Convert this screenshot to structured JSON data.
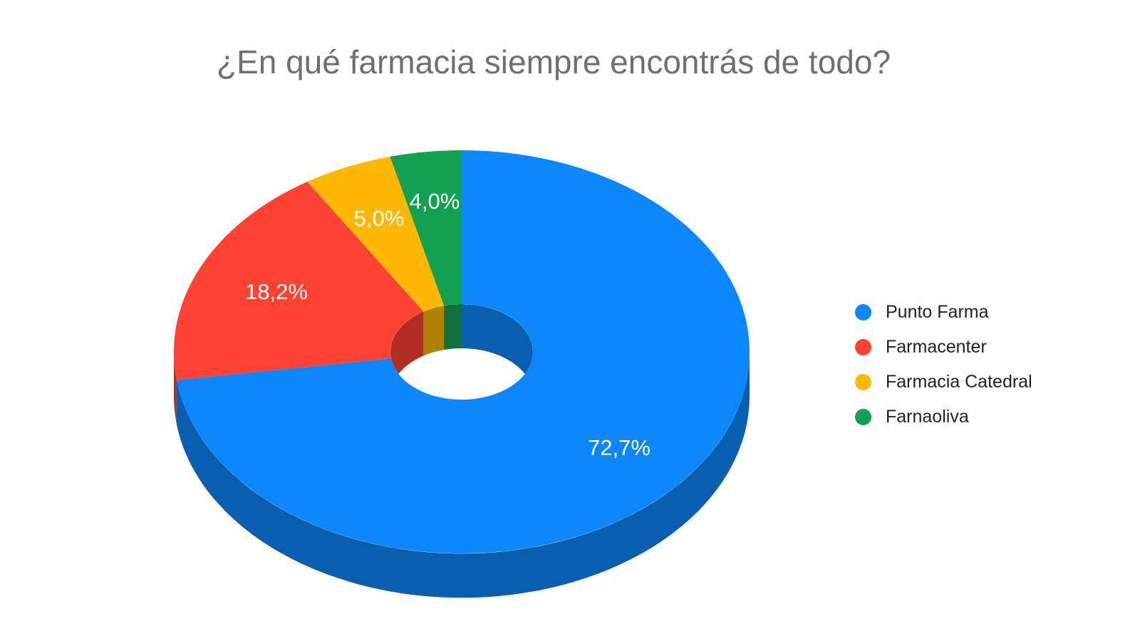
{
  "title": "¿En qué farmacia siempre encontrás de todo?",
  "chart_data": {
    "type": "pie",
    "style": "3d_donut",
    "title": "¿En qué farmacia siempre encontrás de todo?",
    "categories": [
      "Punto Farma",
      "Farmacenter",
      "Farmacia Catedral",
      "Farnaoliva"
    ],
    "values": [
      72.7,
      18.2,
      5.0,
      4.0
    ],
    "value_labels": [
      "72,7%",
      "18,2%",
      "5,0%",
      "4,0%"
    ],
    "unit": "percent",
    "colors": [
      "#0d86fa",
      "#fb4233",
      "#fcb802",
      "#12a152"
    ],
    "legend_position": "right",
    "start_angle_deg": 0,
    "direction": "clockwise",
    "donut": true
  },
  "legend": {
    "items": [
      {
        "label": "Punto Farma",
        "color": "#0d86fa"
      },
      {
        "label": "Farmacenter",
        "color": "#fb4233"
      },
      {
        "label": "Farmacia Catedral",
        "color": "#fcb802"
      },
      {
        "label": "Farnaoliva",
        "color": "#12a152"
      }
    ]
  },
  "text_colors": {
    "title": "#6f6f6f",
    "legend": "#222222",
    "slice_label": "#ffffff"
  }
}
